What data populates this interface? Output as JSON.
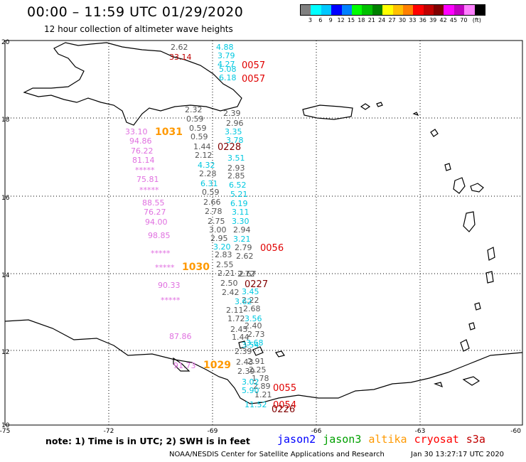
{
  "header": {
    "title": "00:00 – 11:59 UTC 01/29/2020",
    "subtitle": "12 hour collection of altimeter wave heights"
  },
  "legend": {
    "colors": [
      "#808080",
      "#00ffff",
      "#00c8ff",
      "#0000ff",
      "#0080ff",
      "#00ff00",
      "#00c000",
      "#008000",
      "#ffff00",
      "#ffc000",
      "#ff8000",
      "#ff0000",
      "#c00000",
      "#800000",
      "#ff00ff",
      "#c000c0",
      "#ff80ff",
      "#000000"
    ],
    "labels": [
      "3",
      "6",
      "9",
      "12",
      "15",
      "18",
      "21",
      "24",
      "27",
      "30",
      "33",
      "36",
      "39",
      "42",
      "45",
      "70",
      "(ft)"
    ]
  },
  "axes": {
    "lon_labels": [
      "-75",
      "-72",
      "-69",
      "-66",
      "-63",
      "-60"
    ],
    "lat_labels": [
      "20",
      "18",
      "16",
      "14",
      "12",
      "10"
    ]
  },
  "pressures": [
    {
      "text": "1031",
      "color": "#ff9900"
    },
    {
      "text": "1030",
      "color": "#ff9900"
    },
    {
      "text": "1029",
      "color": "#ff9900"
    }
  ],
  "track_times": [
    {
      "text": "0057",
      "color": "#e00000"
    },
    {
      "text": "0057",
      "color": "#e00000"
    },
    {
      "text": "0228",
      "color": "#800000"
    },
    {
      "text": "0056",
      "color": "#e00000"
    },
    {
      "text": "0227",
      "color": "#800000"
    },
    {
      "text": "0055",
      "color": "#e00000"
    },
    {
      "text": "0054",
      "color": "#e00000"
    },
    {
      "text": "0226",
      "color": "#800000"
    }
  ],
  "footer": {
    "note": "note:  1) Time is in UTC;  2) SWH is in feet",
    "satellites": [
      {
        "name": "jason2",
        "color": "#0000ff"
      },
      {
        "name": "jason3",
        "color": "#00a000"
      },
      {
        "name": "altika",
        "color": "#ff9900"
      },
      {
        "name": "cryosat",
        "color": "#ff0000"
      },
      {
        "name": "s3a",
        "color": "#c00000"
      }
    ],
    "credit": "NOAA/NESDIS Center for Satellite Applications and Research",
    "timestamp": "Jan 30 13:27:17 UTC 2020"
  },
  "wave_heights": {
    "pressure_track": [
      "33.10",
      "94.86",
      "76.22",
      "81.14",
      "*****",
      "75.81",
      "*****",
      "88.55",
      "76.27",
      "94.00",
      "98.85",
      "*****",
      "*****",
      "90.33",
      "*****",
      "87.86",
      "91.73"
    ],
    "gray_track": [
      "2.62",
      "2.32",
      "0.59",
      "0.59",
      "0.59",
      "1.44",
      "2.12",
      "2.28",
      "0.59",
      "2.66",
      "2.78",
      "2.75",
      "3.00",
      "2.95",
      "2.83",
      "2.55",
      "2.21",
      "2.50",
      "2.42",
      "2.11",
      "1.72",
      "2.45",
      "1.44",
      "2.39",
      "2.43",
      "2.39"
    ],
    "gray_track_2": [
      "2.39",
      "2.96",
      "2.93",
      "2.85",
      "2.94",
      "2.79",
      "2.62",
      "2.72",
      "2.67",
      "2.22",
      "2.68",
      "2.40",
      "2.73",
      "2.91",
      "2.25",
      "1.78",
      "2.89",
      "1.21"
    ],
    "cyan_track": [
      "4.88",
      "3.79",
      "4.27",
      "5.08",
      "6.18",
      "3.35",
      "3.78",
      "3.51",
      "4.32",
      "6.31",
      "6.52",
      "5.21",
      "6.19",
      "3.11",
      "3.30",
      "3.21",
      "3.20",
      "3.45",
      "3.62",
      "3.56",
      "3.68",
      "3.54",
      "5.90",
      "3.02",
      "11.52"
    ],
    "red_track": [
      "33.14"
    ]
  }
}
